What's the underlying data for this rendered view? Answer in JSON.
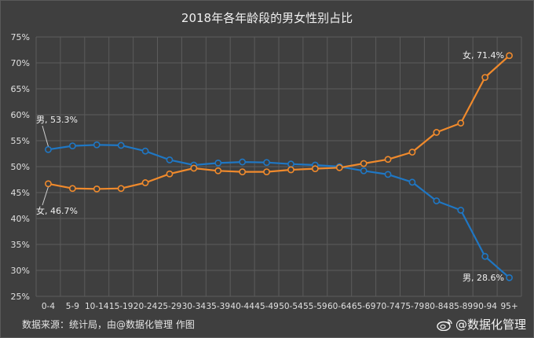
{
  "chart_data": {
    "type": "line",
    "title": "2018年各年龄段的男女性别占比",
    "categories": [
      "0-4",
      "5-9",
      "10-14",
      "15-19",
      "20-24",
      "25-29",
      "30-34",
      "35-39",
      "40-44",
      "45-49",
      "50-54",
      "55-59",
      "60-64",
      "65-69",
      "70-74",
      "75-79",
      "80-84",
      "85-89",
      "90-94",
      "95+"
    ],
    "ylim": [
      25,
      75
    ],
    "yticks": [
      "25%",
      "30%",
      "35%",
      "40%",
      "45%",
      "50%",
      "55%",
      "60%",
      "65%",
      "70%",
      "75%"
    ],
    "grid": true,
    "series": [
      {
        "name": "男",
        "color": "#1f77c4",
        "values": [
          53.3,
          54.0,
          54.2,
          54.1,
          53.0,
          51.3,
          50.3,
          50.7,
          50.9,
          50.8,
          50.5,
          50.3,
          50.0,
          49.2,
          48.5,
          47.0,
          43.4,
          41.6,
          32.7,
          28.6
        ]
      },
      {
        "name": "女",
        "color": "#f08a2c",
        "values": [
          46.7,
          45.8,
          45.7,
          45.8,
          46.9,
          48.6,
          49.7,
          49.2,
          49.0,
          49.0,
          49.4,
          49.6,
          49.8,
          50.6,
          51.4,
          52.8,
          56.6,
          58.4,
          67.2,
          71.4
        ]
      }
    ],
    "annotations": [
      {
        "text": "男, 53.3%"
      },
      {
        "text": "女, 46.7%"
      },
      {
        "text": "女, 71.4%"
      },
      {
        "text": "男, 28.6%"
      }
    ]
  },
  "footer": {
    "source": "数据来源：统计局，由@数据化管理  作图",
    "watermark": "@数据化管理"
  },
  "colors": {
    "background": "#3f3f3f",
    "grid": "#5c5c5c",
    "male": "#1f77c4",
    "female": "#f08a2c"
  }
}
